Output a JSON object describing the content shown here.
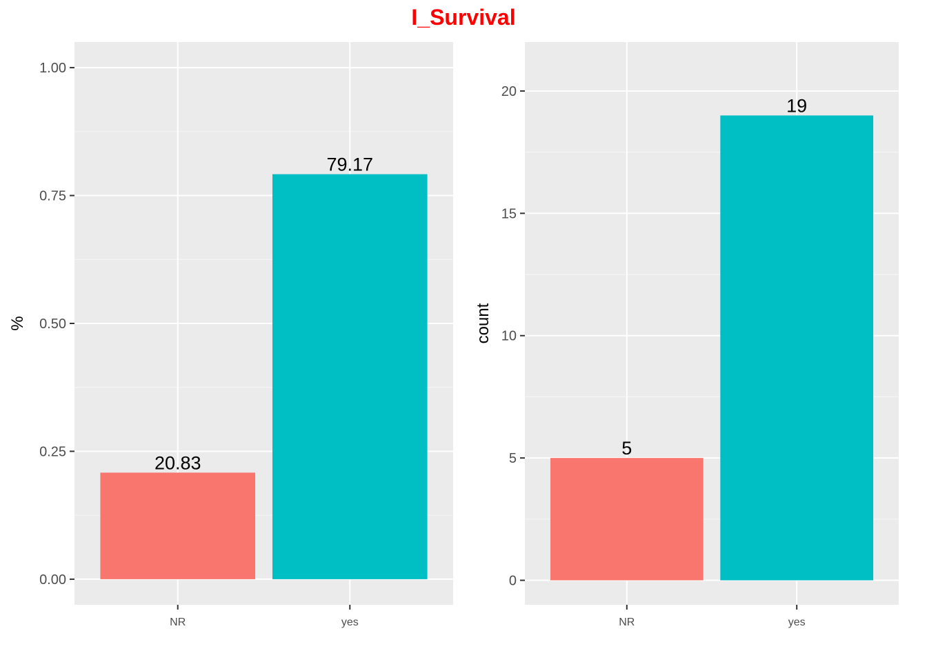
{
  "title": "I_Survival",
  "colors": {
    "panel_bg": "#ebebeb",
    "grid_major": "#ffffff",
    "grid_minor": "#f5f5f5",
    "title": "#ff0000",
    "tick_text": "#4d4d4d",
    "tick_mark": "#333333"
  },
  "chart_data": [
    {
      "type": "bar",
      "categories": [
        "NR",
        "yes"
      ],
      "values": [
        0.2083,
        0.7917
      ],
      "labels": [
        "20.83",
        "79.17"
      ],
      "colors": [
        "#f8766d",
        "#00bfc4"
      ],
      "xlabel": "",
      "ylabel": "%",
      "ylim": [
        -0.05,
        1.05
      ],
      "yticks": [
        0,
        0.25,
        0.5,
        0.75,
        1
      ],
      "ytick_labels": [
        "0.00",
        "0.25",
        "0.50",
        "0.75",
        "1.00"
      ],
      "grid": true,
      "legend": "none"
    },
    {
      "type": "bar",
      "categories": [
        "NR",
        "yes"
      ],
      "values": [
        5,
        19
      ],
      "labels": [
        "5",
        "19"
      ],
      "colors": [
        "#f8766d",
        "#00bfc4"
      ],
      "xlabel": "",
      "ylabel": "count",
      "ylim": [
        -1,
        22
      ],
      "yticks": [
        0,
        5,
        10,
        15,
        20
      ],
      "ytick_labels": [
        "0",
        "5",
        "10",
        "15",
        "20"
      ],
      "grid": true,
      "legend": "none"
    }
  ]
}
